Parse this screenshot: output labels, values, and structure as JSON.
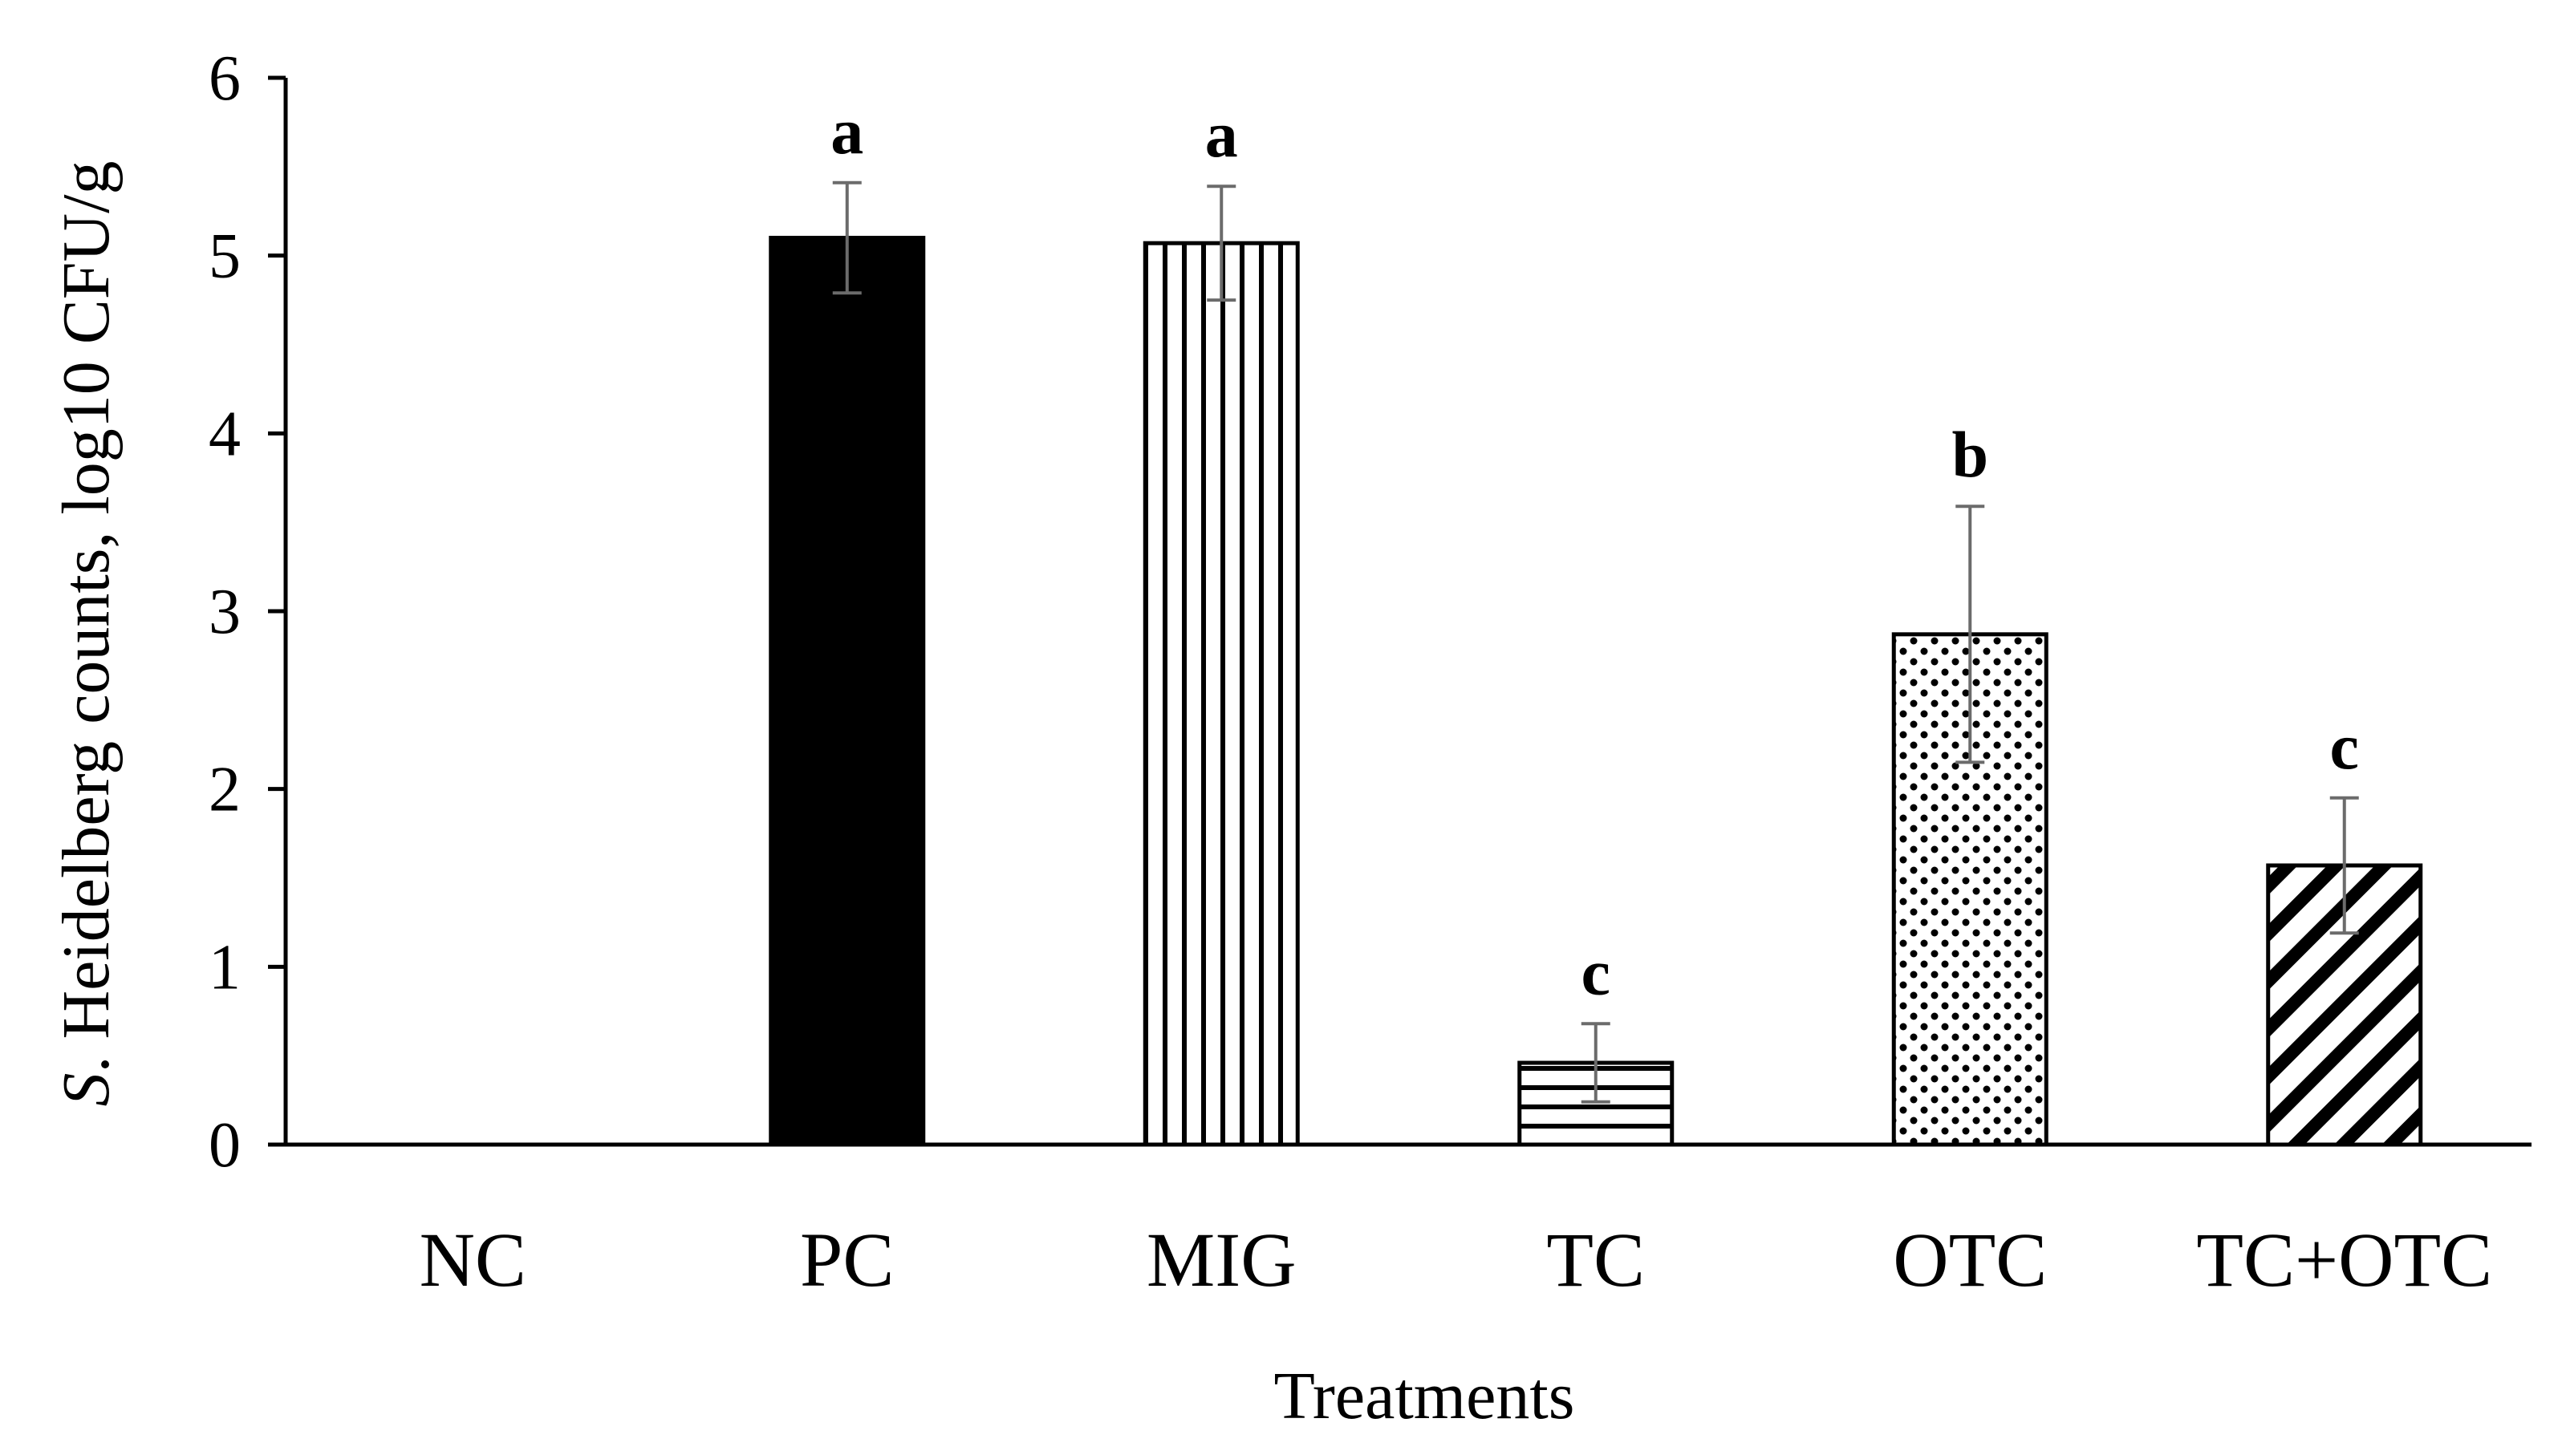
{
  "chart_data": {
    "type": "bar",
    "title": "",
    "xlabel": "Treatments",
    "ylabel_italic": "S",
    "ylabel_rest": ". Heidelberg counts,  log10 CFU/g",
    "categories": [
      "NC",
      "PC",
      "MIG",
      "TC",
      "OTC",
      "TC+OTC"
    ],
    "values": [
      0,
      5.1,
      5.07,
      0.46,
      2.87,
      1.57
    ],
    "errors": [
      0,
      0.31,
      0.32,
      0.22,
      0.72,
      0.38
    ],
    "significance": [
      "",
      "a",
      "a",
      "c",
      "b",
      "c"
    ],
    "patterns": [
      "none",
      "solid-black",
      "vertical-lines",
      "horizontal-lines",
      "dots",
      "diagonal-lines"
    ],
    "ylim": [
      0,
      6
    ],
    "yticks": [
      0,
      1,
      2,
      3,
      4,
      5,
      6
    ],
    "grid": false,
    "legend": "none",
    "colors": {
      "bar_edge": "#000000",
      "bar_fill": "#ffffff",
      "error_bar": "#6b6b6b",
      "axis": "#000000"
    }
  }
}
